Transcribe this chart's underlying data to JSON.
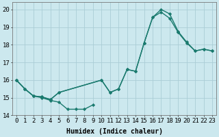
{
  "xlabel": "Humidex (Indice chaleur)",
  "bg_color": "#cce8ee",
  "grid_color": "#aacdd6",
  "line_color": "#1a7a6e",
  "line1": {
    "x": [
      0,
      1,
      2,
      3,
      4,
      5,
      6,
      7,
      8,
      9
    ],
    "y": [
      16.0,
      15.5,
      15.1,
      15.0,
      14.85,
      14.75,
      14.35,
      14.35,
      14.35,
      14.6
    ]
  },
  "line2": {
    "x": [
      0,
      1,
      2,
      3,
      4,
      5,
      10,
      11,
      12,
      13,
      14,
      15,
      16,
      17,
      18,
      19,
      20,
      21,
      22,
      23
    ],
    "y": [
      16.0,
      15.5,
      15.1,
      15.05,
      14.9,
      15.3,
      16.0,
      15.3,
      15.5,
      16.6,
      16.5,
      18.1,
      19.55,
      20.0,
      19.75,
      18.75,
      18.15,
      17.65,
      17.75,
      17.65
    ]
  },
  "line3": {
    "x": [
      0,
      1,
      2,
      3,
      4,
      5,
      10,
      11,
      12,
      13,
      14,
      15,
      16,
      17,
      18,
      19,
      20,
      21,
      22,
      23
    ],
    "y": [
      16.0,
      15.5,
      15.1,
      15.05,
      14.9,
      15.3,
      16.0,
      15.3,
      15.5,
      16.6,
      16.5,
      18.1,
      19.55,
      19.85,
      19.5,
      18.7,
      18.1,
      17.65,
      17.75,
      17.65
    ]
  },
  "yticks": [
    14,
    15,
    16,
    17,
    18,
    19,
    20
  ],
  "xticks": [
    0,
    1,
    2,
    3,
    4,
    5,
    6,
    7,
    8,
    9,
    10,
    11,
    12,
    13,
    14,
    15,
    16,
    17,
    18,
    19,
    20,
    21,
    22,
    23
  ],
  "xtick_labels": [
    "0",
    "1",
    "2",
    "3",
    "4",
    "5",
    "6",
    "7",
    "8",
    "9",
    "10",
    "11",
    "12",
    "13",
    "14",
    "15",
    "16",
    "17",
    "18",
    "19",
    "20",
    "21",
    "22",
    "23"
  ],
  "xlim": [
    -0.5,
    23.5
  ],
  "ylim": [
    14.0,
    20.4
  ],
  "marker": "D",
  "markersize": 2.2,
  "linewidth": 1.0,
  "xlabel_fontsize": 7,
  "tick_fontsize": 6.5
}
